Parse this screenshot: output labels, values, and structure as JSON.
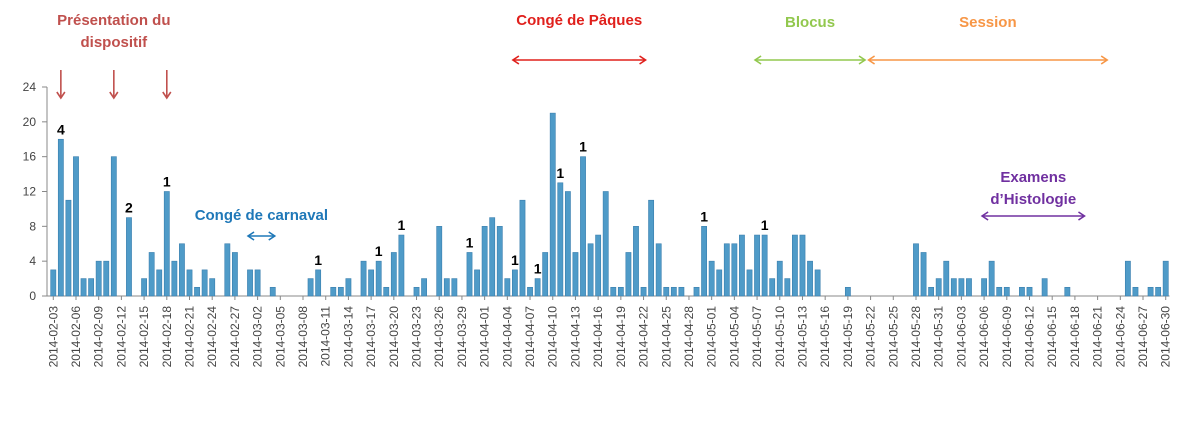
{
  "chart_data": {
    "type": "bar",
    "color": "#4f9bc8",
    "categories": [
      "2014-02-03",
      null,
      null,
      "2014-02-06",
      null,
      null,
      "2014-02-09",
      null,
      null,
      "2014-02-12",
      null,
      null,
      "2014-02-15",
      null,
      null,
      "2014-02-18",
      null,
      null,
      "2014-02-21",
      null,
      null,
      "2014-02-24",
      null,
      null,
      "2014-02-27",
      null,
      null,
      "2014-03-02",
      null,
      null,
      "2014-03-05",
      null,
      null,
      "2014-03-08",
      null,
      null,
      "2014-03-11",
      null,
      null,
      "2014-03-14",
      null,
      null,
      "2014-03-17",
      null,
      null,
      "2014-03-20",
      null,
      null,
      "2014-03-23",
      null,
      null,
      "2014-03-26",
      null,
      null,
      "2014-03-29",
      null,
      null,
      "2014-04-01",
      null,
      null,
      "2014-04-04",
      null,
      null,
      "2014-04-07",
      null,
      null,
      "2014-04-10",
      null,
      null,
      "2014-04-13",
      null,
      null,
      "2014-04-16",
      null,
      null,
      "2014-04-19",
      null,
      null,
      "2014-04-22",
      null,
      null,
      "2014-04-25",
      null,
      null,
      "2014-04-28",
      null,
      null,
      "2014-05-01",
      null,
      null,
      "2014-05-04",
      null,
      null,
      "2014-05-07",
      null,
      null,
      "2014-05-10",
      null,
      null,
      "2014-05-13",
      null,
      null,
      "2014-05-16",
      null,
      null,
      "2014-05-19",
      null,
      null,
      "2014-05-22",
      null,
      null,
      "2014-05-25",
      null,
      null,
      "2014-05-28",
      null,
      null,
      "2014-05-31",
      null,
      null,
      "2014-06-03",
      null,
      null,
      "2014-06-06",
      null,
      null,
      "2014-06-09",
      null,
      null,
      "2014-06-12",
      null,
      null,
      "2014-06-15",
      null,
      null,
      "2014-06-18",
      null,
      null,
      "2014-06-21",
      null,
      null,
      "2014-06-24",
      null,
      null,
      "2014-06-27",
      null,
      null,
      "2014-06-30"
    ],
    "values": [
      3,
      18,
      11,
      16,
      2,
      2,
      4,
      4,
      16,
      0,
      9,
      0,
      2,
      5,
      3,
      12,
      4,
      6,
      3,
      1,
      3,
      2,
      0,
      6,
      5,
      0,
      3,
      3,
      0,
      1,
      0,
      0,
      0,
      0,
      2,
      3,
      0,
      1,
      1,
      2,
      0,
      4,
      3,
      4,
      1,
      5,
      7,
      0,
      1,
      2,
      0,
      8,
      2,
      2,
      0,
      5,
      3,
      8,
      9,
      8,
      2,
      3,
      11,
      1,
      2,
      5,
      21,
      13,
      12,
      5,
      16,
      6,
      7,
      12,
      1,
      1,
      5,
      8,
      1,
      11,
      6,
      1,
      1,
      1,
      0,
      1,
      8,
      4,
      3,
      6,
      6,
      7,
      3,
      7,
      7,
      2,
      4,
      2,
      7,
      7,
      4,
      3,
      0,
      0,
      0,
      1,
      0,
      0,
      0,
      0,
      0,
      0,
      0,
      0,
      6,
      5,
      1,
      2,
      4,
      2,
      2,
      2,
      0,
      2,
      4,
      1,
      1,
      0,
      1,
      1,
      0,
      2,
      0,
      0,
      1,
      0,
      0,
      0,
      0,
      0,
      0,
      0,
      4,
      1,
      0,
      1,
      1,
      4
    ],
    "ylim": [
      0,
      24
    ],
    "yticks": [
      0,
      4,
      8,
      12,
      16,
      20,
      24
    ],
    "bar_labels": [
      {
        "index": 1,
        "value": 4
      },
      {
        "index": 10,
        "value": 2
      },
      {
        "index": 15,
        "value": 1
      },
      {
        "index": 35,
        "value": 1
      },
      {
        "index": 43,
        "value": 1
      },
      {
        "index": 46,
        "value": 1
      },
      {
        "index": 55,
        "value": 1
      },
      {
        "index": 61,
        "value": 1
      },
      {
        "index": 64,
        "value": 1
      },
      {
        "index": 67,
        "value": 1
      },
      {
        "index": 70,
        "value": 1
      },
      {
        "index": 86,
        "value": 1
      },
      {
        "index": 94,
        "value": 1
      }
    ],
    "events": [
      {
        "lines": [
          "Présentation du",
          "dispositif"
        ],
        "color": "#c0504d",
        "points": [
          1,
          8,
          15
        ]
      }
    ],
    "periods": [
      {
        "lines": [
          "Congé de Pâques"
        ],
        "color": "#e0201c",
        "start": 61,
        "end": 78
      },
      {
        "lines": [
          "Blocus"
        ],
        "color": "#92c84e",
        "start": 93,
        "end": 107
      },
      {
        "lines": [
          "Session"
        ],
        "color": "#f79646",
        "start": 108,
        "end": 139
      },
      {
        "lines": [
          "Congé de carnaval"
        ],
        "color": "#1f78b8",
        "start": 26,
        "end": 29
      },
      {
        "lines": [
          "Examens",
          "d’Histologie"
        ],
        "color": "#7030a0",
        "start": 123,
        "end": 136
      }
    ]
  }
}
